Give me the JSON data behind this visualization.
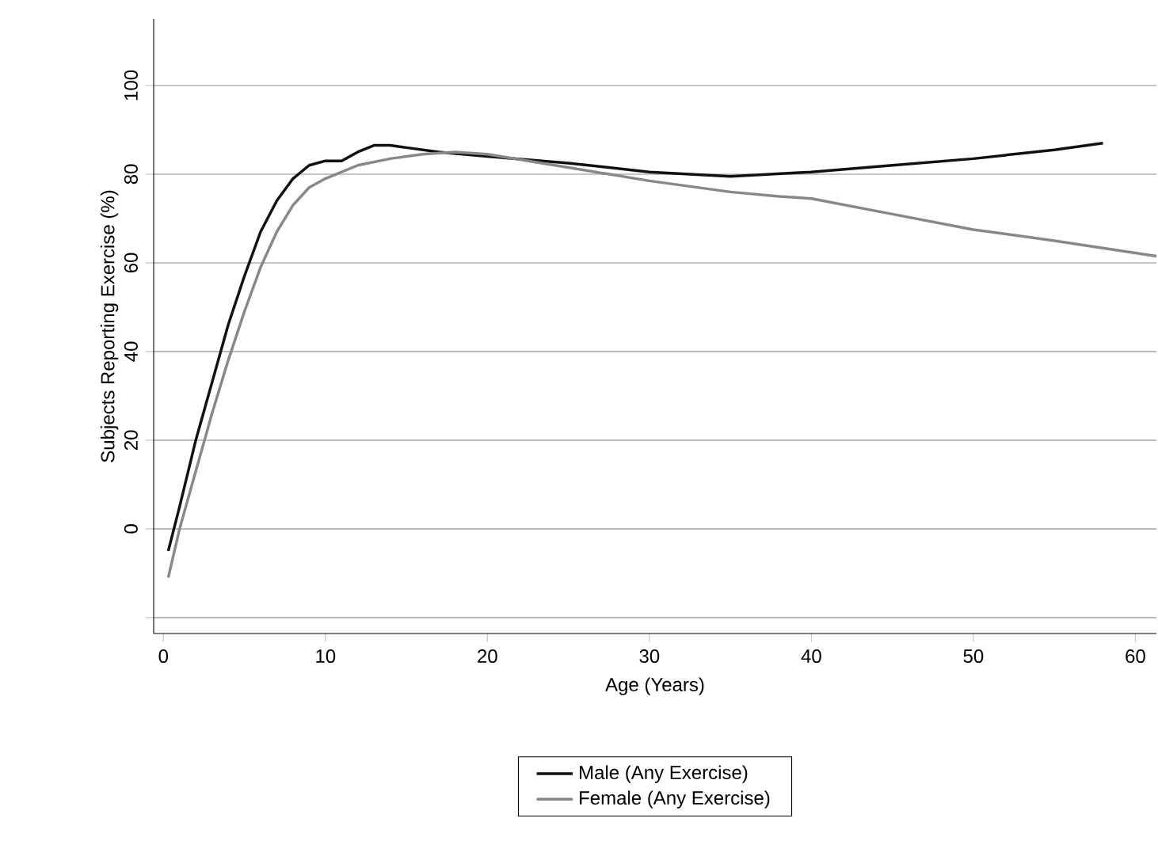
{
  "chart_data": {
    "type": "line",
    "xlabel": "Age (Years)",
    "ylabel": "Subjects Reporting Exercise (%)",
    "xlim": [
      -0.6,
      61.3
    ],
    "ylim": [
      -23.6,
      115
    ],
    "xticks": [
      0,
      10,
      20,
      30,
      40,
      50,
      60
    ],
    "yticks": [
      {
        "value": -20,
        "label": null
      },
      0,
      20,
      40,
      60,
      80,
      100
    ],
    "grid": "y",
    "legend": "bottom",
    "line_style": "solid",
    "marker": "none",
    "series": [
      {
        "name": "Male (Any Exercise)",
        "color": "#111111",
        "x": [
          0.3,
          1,
          2,
          3,
          4,
          5,
          6,
          7,
          8,
          9,
          10,
          11,
          12,
          13,
          14,
          15,
          17,
          20,
          25,
          30,
          35,
          40,
          45,
          50,
          55,
          58
        ],
        "values": [
          -5,
          5,
          20,
          33,
          46,
          57,
          67,
          74,
          79,
          82,
          83,
          83,
          85,
          86.5,
          86.5,
          86,
          85,
          84,
          82.5,
          80.5,
          79.5,
          80.5,
          82,
          83.5,
          85.5,
          87
        ]
      },
      {
        "name": "Female (Any Exercise)",
        "color": "#888888",
        "x": [
          0.3,
          1,
          2,
          3,
          4,
          5,
          6,
          7,
          8,
          9,
          10,
          12,
          14,
          16,
          18,
          20,
          25,
          30,
          35,
          38,
          40,
          45,
          50,
          55,
          61.3
        ],
        "values": [
          -11,
          0,
          13,
          26,
          38,
          49,
          59,
          67,
          73,
          77,
          79,
          82,
          83.5,
          84.5,
          85,
          84.5,
          81.5,
          78.5,
          76,
          75,
          74.5,
          71,
          67.5,
          65,
          61.5
        ]
      }
    ]
  }
}
